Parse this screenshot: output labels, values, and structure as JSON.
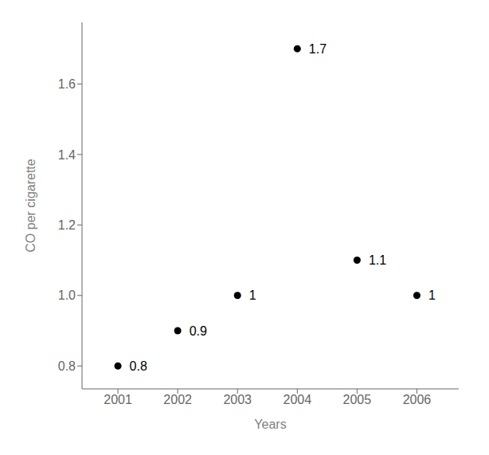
{
  "chart_data": {
    "type": "scatter",
    "x": [
      2001,
      2002,
      2003,
      2004,
      2005,
      2006
    ],
    "values": [
      0.8,
      0.9,
      1.0,
      1.7,
      1.1,
      1.0
    ],
    "xlabel": "Years",
    "ylabel": "CO per cigarette",
    "xlim": [
      2000.4,
      2006.7
    ],
    "ylim": [
      0.735,
      1.775
    ],
    "xticks": [
      2001,
      2002,
      2003,
      2004,
      2005,
      2006
    ],
    "yticks": [
      0.8,
      {
        "value": 1.0,
        "label": "1.0"
      },
      1.2,
      1.4,
      1.6
    ],
    "color": "#000000",
    "data_labels": true,
    "grid": false
  }
}
